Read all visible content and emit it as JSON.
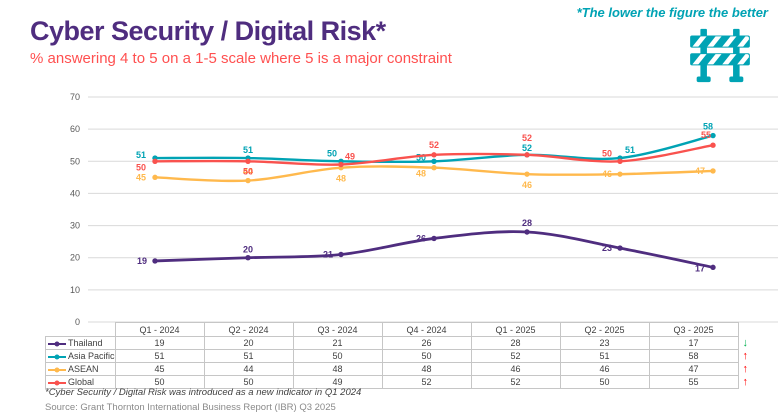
{
  "header": {
    "title": "Cyber Security / Digital Risk*",
    "subtitle": "% answering 4 to 5 on a 1-5 scale where 5 is a major constraint",
    "note": "*The lower the figure the better"
  },
  "icons": {
    "barrier_icon": "construction-barrier",
    "barrier_color": "#00A3B4"
  },
  "colors": {
    "title_purple": "#4F2D7F",
    "subtitle_red": "#FF5050",
    "note_teal": "#00A3B4",
    "grid_gray": "#D9D9D9",
    "axis_text": "#595959",
    "trend_up_red": "#FF0000",
    "trend_down_green": "#00B050"
  },
  "chart_data": {
    "type": "line",
    "title": "Cyber Security / Digital Risk*",
    "subtitle": "% answering 4 to 5 on a 1-5 scale where 5 is a major constraint",
    "categories": [
      "Q1 - 2024",
      "Q2 - 2024",
      "Q3 - 2024",
      "Q4 - 2024",
      "Q1 - 2025",
      "Q2 - 2025",
      "Q3 - 2025"
    ],
    "series": [
      {
        "name": "Thailand",
        "color": "#4F2D7F",
        "values": [
          19,
          20,
          21,
          26,
          28,
          23,
          17
        ],
        "trend": "down",
        "trend_color": "#00B050"
      },
      {
        "name": "Asia Pacific",
        "color": "#00A3B4",
        "values": [
          51,
          51,
          50,
          50,
          52,
          51,
          58
        ],
        "trend": "up",
        "trend_color": "#FF0000"
      },
      {
        "name": "ASEAN",
        "color": "#FFB94D",
        "values": [
          45,
          44,
          48,
          48,
          46,
          46,
          47
        ],
        "trend": "up",
        "trend_color": "#FF0000"
      },
      {
        "name": "Global",
        "color": "#F9524E",
        "values": [
          50,
          50,
          49,
          52,
          52,
          50,
          55
        ],
        "trend": "up",
        "trend_color": "#FF0000"
      }
    ],
    "ylim": [
      0,
      70
    ],
    "ytick_step": 10,
    "grid": true,
    "data_labels": true,
    "legend_position": "table-left"
  },
  "footnotes": {
    "note1": "*Cyber Security / Digital Risk was introduced as a new indicator in Q1 2024",
    "source": "Source: Grant Thornton International Business Report (IBR) Q3 2025"
  }
}
